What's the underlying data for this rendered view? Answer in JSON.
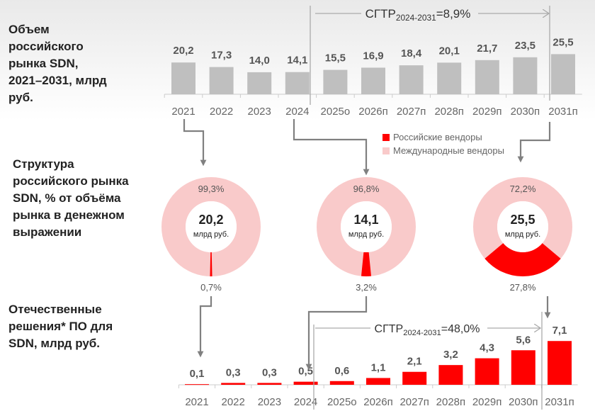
{
  "labels": {
    "top": "Объем российского рынка SDN, 2021–2031, млрд руб.",
    "mid": "Структура российского рынка SDN, % от объёма рынка в денежном выражении",
    "bottom": "Отечественные решения* ПО для SDN, млрд руб."
  },
  "legend": {
    "domestic": "Российские вендоры",
    "international": "Международные вендоры"
  },
  "colors": {
    "domestic": "#ff0000",
    "international": "#f9caca",
    "bar_gray": "#bfbfbf",
    "arrow": "#808080"
  },
  "chart_data": [
    {
      "type": "bar",
      "title": "Объем российского рынка SDN, 2021–2031, млрд руб.",
      "categories": [
        "2021",
        "2022",
        "2023",
        "2024",
        "2025о",
        "2026п",
        "2027п",
        "2028п",
        "2029п",
        "2030п",
        "2031п"
      ],
      "values": [
        20.2,
        17.3,
        14.0,
        14.1,
        15.5,
        16.9,
        18.4,
        20.1,
        21.7,
        23.5,
        25.5
      ],
      "value_labels": [
        "20,2",
        "17,3",
        "14,0",
        "14,1",
        "15,5",
        "16,9",
        "18,4",
        "20,1",
        "21,7",
        "23,5",
        "25,5"
      ],
      "cagr": {
        "prefix": "СГТР",
        "sub": "2024-2031",
        "value": "=8,9%"
      }
    },
    {
      "type": "pie",
      "title": "Структура российского рынка SDN",
      "donuts": [
        {
          "year": "2021",
          "total": "20,2",
          "unit": "млрд руб.",
          "domestic": 0.7,
          "international": 99.3,
          "domestic_label": "0,7%",
          "international_label": "99,3%"
        },
        {
          "year": "2024",
          "total": "14,1",
          "unit": "млрд руб.",
          "domestic": 3.2,
          "international": 96.8,
          "domestic_label": "3,2%",
          "international_label": "96,8%"
        },
        {
          "year": "2031",
          "total": "25,5",
          "unit": "млрд руб.",
          "domestic": 27.8,
          "international": 72.2,
          "domestic_label": "27,8%",
          "international_label": "72,2%"
        }
      ]
    },
    {
      "type": "bar",
      "title": "Отечественные решения* ПО для SDN, млрд руб.",
      "categories": [
        "2021",
        "2022",
        "2023",
        "2024",
        "2025о",
        "2026п",
        "2027п",
        "2028п",
        "2029п",
        "2030п",
        "2031п"
      ],
      "values": [
        0.1,
        0.3,
        0.3,
        0.5,
        0.6,
        1.1,
        2.1,
        3.2,
        4.3,
        5.6,
        7.1
      ],
      "value_labels": [
        "0,1",
        "0,3",
        "0,3",
        "0,5",
        "0,6",
        "1,1",
        "2,1",
        "3,2",
        "4,3",
        "5,6",
        "7,1"
      ],
      "cagr": {
        "prefix": "СГТР",
        "sub": "2024-2031",
        "value": "=48,0%"
      }
    }
  ]
}
